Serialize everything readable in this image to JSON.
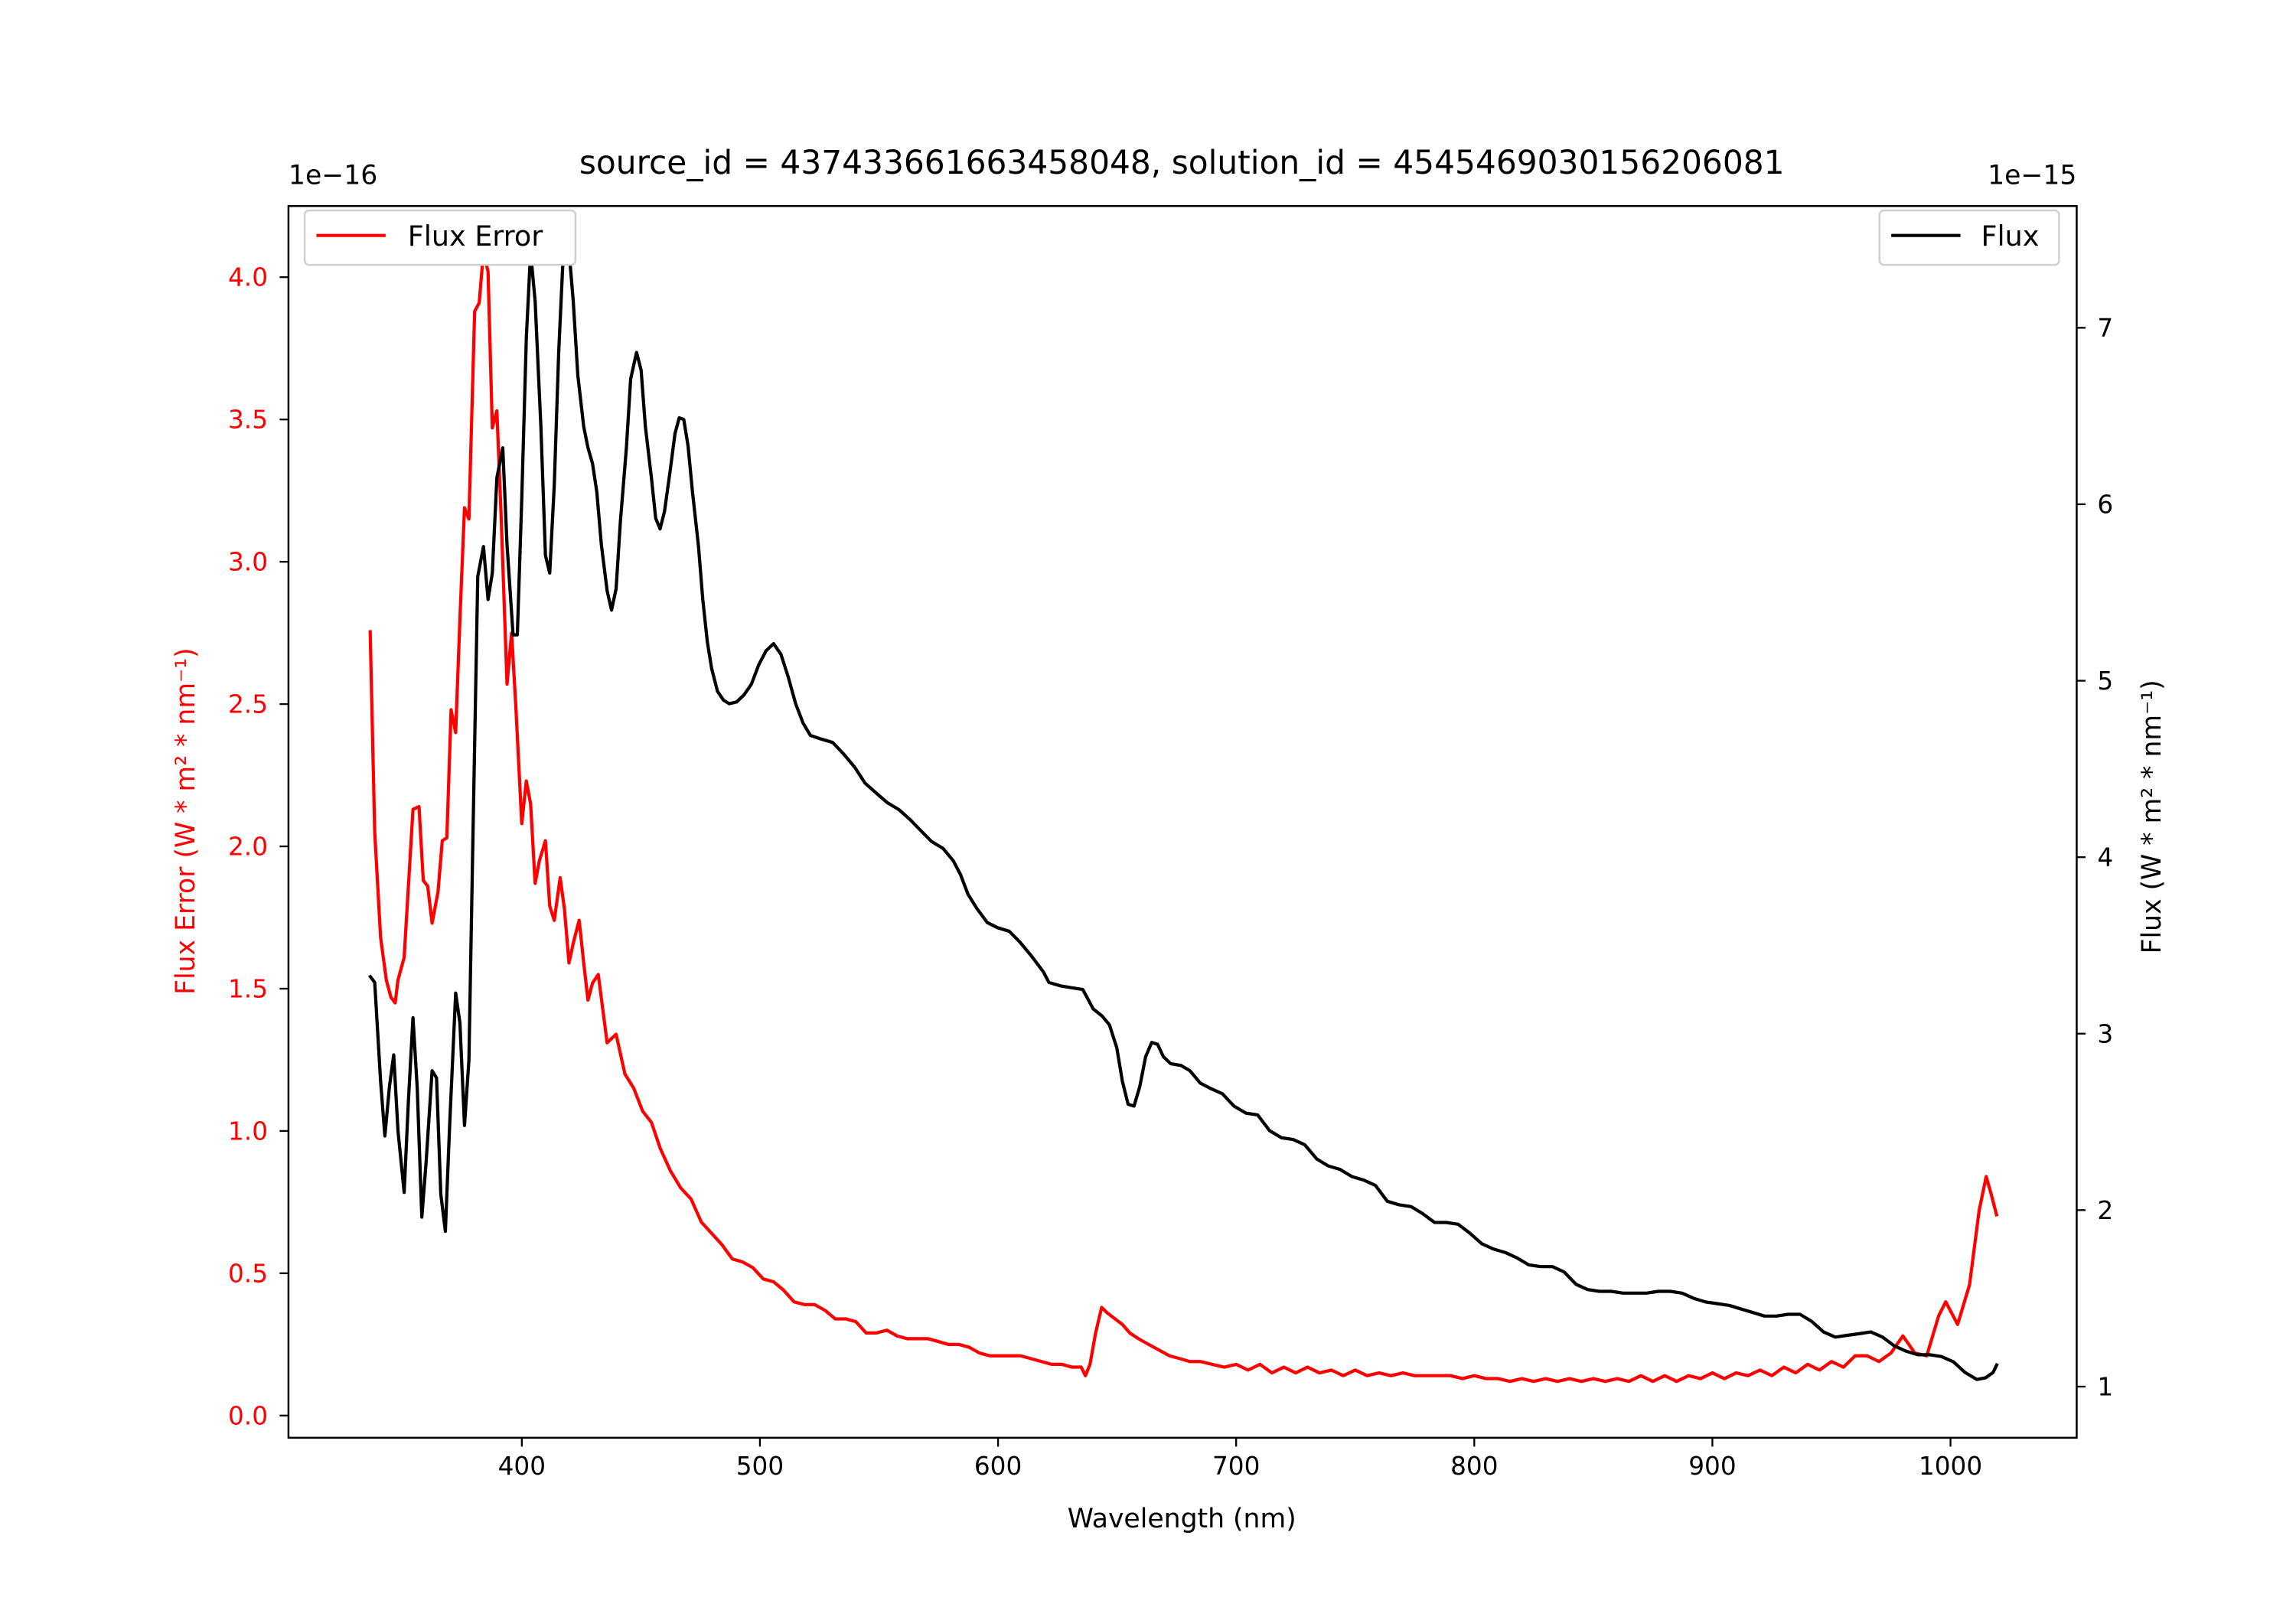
{
  "chart_data": {
    "type": "line",
    "title": "source_id = 437433661663458048, solution_id = 4545469030156206081",
    "xlabel": "Wavelength (nm)",
    "ylabel_left": "Flux Error (W * m² * nm⁻¹)",
    "ylabel_right": "Flux (W * m² * nm⁻¹)",
    "left_offset_text": "1e−16",
    "right_offset_text": "1e−15",
    "xlim": [
      302,
      1053
    ],
    "ylim_left": [
      -0.078,
      4.25
    ],
    "ylim_right": [
      0.71,
      7.69
    ],
    "x_ticks": [
      400,
      500,
      600,
      700,
      800,
      900,
      1000
    ],
    "x_tick_labels": [
      "400",
      "500",
      "600",
      "700",
      "800",
      "900",
      "1000"
    ],
    "left_ticks": [
      0,
      0.5,
      1,
      1.5,
      2,
      2.5,
      3,
      3.5,
      4
    ],
    "left_tick_labels": [
      "0.0",
      "0.5",
      "1.0",
      "1.5",
      "2.0",
      "2.5",
      "3.0",
      "3.5",
      "4.0"
    ],
    "right_ticks": [
      1,
      2,
      3,
      4,
      5,
      6,
      7
    ],
    "right_tick_labels": [
      "1",
      "2",
      "3",
      "4",
      "5",
      "6",
      "7"
    ],
    "grid": false,
    "series": [
      {
        "name": "Flux Error",
        "axis": "left",
        "color": "#ff0000",
        "legend": "top-left",
        "x": [
          336.3,
          338.2,
          340.7,
          343.1,
          345,
          346.8,
          348,
          350.6,
          354.3,
          356.8,
          358.6,
          360.5,
          362.3,
          364.8,
          366.6,
          368.5,
          370.3,
          372.2,
          374,
          375.9,
          377.8,
          380.2,
          382.1,
          383.9,
          385.8,
          387.6,
          389.5,
          391.3,
          393.8,
          395.7,
          397.5,
          400,
          401.9,
          403.7,
          405.6,
          407.4,
          409.9,
          411.7,
          413.6,
          416.1,
          417.9,
          419.8,
          421.6,
          424.1,
          426,
          427.8,
          429.7,
          432.1,
          435.8,
          439.6,
          443.3,
          447,
          450.7,
          454.4,
          458.1,
          462.4,
          466.7,
          471.1,
          475.4,
          479.7,
          484.1,
          488.4,
          492.7,
          497,
          501.4,
          505.7,
          510,
          514.3,
          518.7,
          523,
          527.3,
          531.6,
          536,
          540.3,
          544.6,
          548.9,
          553.3,
          557.6,
          561.9,
          566.2,
          570.6,
          574.9,
          579.2,
          583.6,
          587.9,
          592.2,
          596.5,
          600.9,
          605.2,
          609.5,
          613.8,
          618.2,
          622.5,
          626.8,
          631.1,
          634.9,
          636.7,
          638.6,
          641,
          643.5,
          646,
          649.1,
          652.2,
          655.3,
          659,
          663.3,
          667.6,
          672,
          676.3,
          680.6,
          685,
          690,
          695,
          700,
          705,
          710,
          715,
          720,
          725,
          730,
          735,
          740,
          745,
          750,
          755,
          760,
          765,
          770,
          775,
          780,
          785,
          790,
          795,
          800,
          805,
          810,
          815,
          820,
          825,
          830,
          835,
          840,
          845,
          850,
          855,
          860,
          865,
          870,
          875,
          880,
          885,
          890,
          895,
          900,
          905,
          910,
          915,
          920,
          925,
          930,
          935,
          940,
          945,
          950,
          955,
          960,
          965,
          970,
          975,
          980,
          985,
          990,
          995,
          998,
          1003,
          1008,
          1012,
          1015,
          1017,
          1019.5
        ],
        "y": [
          2.76,
          2.05,
          1.68,
          1.53,
          1.47,
          1.45,
          1.53,
          1.61,
          2.13,
          2.14,
          1.88,
          1.86,
          1.73,
          1.84,
          2.02,
          2.03,
          2.48,
          2.4,
          2.8,
          3.19,
          3.15,
          3.88,
          3.91,
          4.09,
          4.02,
          3.47,
          3.53,
          3.16,
          2.57,
          2.75,
          2.49,
          2.08,
          2.23,
          2.15,
          1.87,
          1.95,
          2.02,
          1.79,
          1.74,
          1.89,
          1.78,
          1.59,
          1.66,
          1.74,
          1.59,
          1.46,
          1.52,
          1.55,
          1.31,
          1.34,
          1.2,
          1.15,
          1.07,
          1.03,
          0.94,
          0.86,
          0.8,
          0.76,
          0.68,
          0.64,
          0.6,
          0.55,
          0.54,
          0.52,
          0.48,
          0.47,
          0.44,
          0.4,
          0.39,
          0.39,
          0.37,
          0.34,
          0.34,
          0.33,
          0.29,
          0.29,
          0.3,
          0.28,
          0.27,
          0.27,
          0.27,
          0.26,
          0.25,
          0.25,
          0.24,
          0.22,
          0.21,
          0.21,
          0.21,
          0.21,
          0.2,
          0.19,
          0.18,
          0.18,
          0.17,
          0.17,
          0.14,
          0.18,
          0.29,
          0.38,
          0.36,
          0.34,
          0.32,
          0.29,
          0.27,
          0.25,
          0.23,
          0.21,
          0.2,
          0.19,
          0.19,
          0.18,
          0.17,
          0.18,
          0.16,
          0.18,
          0.15,
          0.17,
          0.15,
          0.17,
          0.15,
          0.16,
          0.14,
          0.16,
          0.14,
          0.15,
          0.14,
          0.15,
          0.14,
          0.14,
          0.14,
          0.14,
          0.13,
          0.14,
          0.13,
          0.13,
          0.12,
          0.13,
          0.12,
          0.13,
          0.12,
          0.13,
          0.12,
          0.13,
          0.12,
          0.13,
          0.12,
          0.14,
          0.12,
          0.14,
          0.12,
          0.14,
          0.13,
          0.15,
          0.13,
          0.15,
          0.14,
          0.16,
          0.14,
          0.17,
          0.15,
          0.18,
          0.16,
          0.19,
          0.17,
          0.21,
          0.21,
          0.19,
          0.22,
          0.28,
          0.22,
          0.21,
          0.35,
          0.4,
          0.32,
          0.46,
          0.72,
          0.84,
          0.78,
          0.7
        ]
      },
      {
        "name": "Flux",
        "axis": "right",
        "color": "#000000",
        "legend": "top-right",
        "x": [
          336,
          338.2,
          340.7,
          342.5,
          344.4,
          346.2,
          348,
          350.6,
          352.4,
          354.3,
          356.1,
          358,
          359.8,
          362.3,
          364.2,
          366,
          367.9,
          369.7,
          372.2,
          374,
          375.9,
          377.8,
          379.6,
          381.5,
          383.9,
          385.8,
          387.6,
          389.5,
          392,
          393.8,
          396.3,
          398.1,
          400,
          401.9,
          403.7,
          405.6,
          408,
          409.9,
          411.7,
          413.6,
          415.5,
          417.3,
          419.8,
          421.6,
          423.5,
          426,
          427.8,
          429.7,
          431.5,
          433.4,
          435.8,
          437.7,
          439.6,
          441.4,
          443.9,
          445.7,
          448.2,
          450.1,
          451.9,
          454.4,
          456.2,
          458.1,
          459.9,
          462.4,
          464.3,
          466.1,
          468,
          469.8,
          471.7,
          474.2,
          476,
          477.9,
          479.7,
          482.2,
          484.7,
          487.1,
          490.2,
          493.3,
          496.4,
          499.5,
          502.6,
          505.7,
          508.8,
          511.9,
          515,
          518.1,
          521.2,
          525.5,
          530.5,
          534.8,
          539.8,
          544.1,
          549.1,
          553.4,
          558.3,
          563.3,
          567.6,
          572,
          576.9,
          581.2,
          584.3,
          587.4,
          591.1,
          595.5,
          599.8,
          604.7,
          609.1,
          614,
          619,
          621.4,
          626.4,
          635.6,
          640,
          643.7,
          646.8,
          649.9,
          652.2,
          654.6,
          657.1,
          659.5,
          662,
          664.5,
          667,
          669.4,
          672.5,
          676.8,
          680.6,
          684.9,
          689.2,
          694.2,
          699.1,
          704.1,
          709,
          714,
          719,
          723.9,
          728.8,
          733.8,
          738.7,
          743.7,
          748.6,
          753.6,
          758.5,
          763.5,
          768.4,
          773.4,
          778.3,
          783.3,
          788.2,
          793.2,
          798.1,
          803.1,
          808,
          813,
          817.9,
          822.9,
          827.8,
          832.8,
          837.7,
          842.7,
          847.6,
          852.6,
          857.5,
          862.5,
          867.4,
          872.4,
          877.3,
          882.3,
          887.2,
          892.2,
          897.2,
          902.1,
          907.1,
          912,
          917,
          921.9,
          926.9,
          931.8,
          936.8,
          941.7,
          946.7,
          951.6,
          956.6,
          961.6,
          966.5,
          971.5,
          976.4,
          981.4,
          986.3,
          991.3,
          996.2,
          1001.2,
          1006.1,
          1011.1,
          1014.8,
          1017.9,
          1019.7
        ],
        "y": [
          3.33,
          3.29,
          2.73,
          2.42,
          2.7,
          2.88,
          2.45,
          2.1,
          2.62,
          3.09,
          2.69,
          1.96,
          2.27,
          2.79,
          2.75,
          2.09,
          1.88,
          2.48,
          3.23,
          3.06,
          2.48,
          2.85,
          4.19,
          5.59,
          5.76,
          5.46,
          5.61,
          6.15,
          6.32,
          5.77,
          5.26,
          5.26,
          6.03,
          6.94,
          7.43,
          7.15,
          6.44,
          5.71,
          5.61,
          6.11,
          6.86,
          7.38,
          7.44,
          7.15,
          6.73,
          6.44,
          6.32,
          6.23,
          6.07,
          5.77,
          5.51,
          5.4,
          5.52,
          5.9,
          6.32,
          6.71,
          6.86,
          6.76,
          6.44,
          6.15,
          5.92,
          5.86,
          5.96,
          6.2,
          6.4,
          6.49,
          6.48,
          6.33,
          6.07,
          5.76,
          5.46,
          5.22,
          5.07,
          4.94,
          4.89,
          4.87,
          4.88,
          4.92,
          4.98,
          5.09,
          5.17,
          5.21,
          5.15,
          5.02,
          4.87,
          4.76,
          4.69,
          4.67,
          4.65,
          4.59,
          4.51,
          4.42,
          4.36,
          4.31,
          4.27,
          4.21,
          4.15,
          4.09,
          4.05,
          3.98,
          3.9,
          3.79,
          3.71,
          3.63,
          3.6,
          3.58,
          3.52,
          3.44,
          3.35,
          3.29,
          3.27,
          3.25,
          3.14,
          3.1,
          3.05,
          2.92,
          2.73,
          2.6,
          2.59,
          2.7,
          2.87,
          2.95,
          2.94,
          2.87,
          2.83,
          2.82,
          2.79,
          2.72,
          2.69,
          2.66,
          2.59,
          2.55,
          2.54,
          2.45,
          2.41,
          2.4,
          2.37,
          2.29,
          2.25,
          2.23,
          2.19,
          2.17,
          2.14,
          2.05,
          2.03,
          2.02,
          1.98,
          1.93,
          1.93,
          1.92,
          1.87,
          1.81,
          1.78,
          1.76,
          1.73,
          1.69,
          1.68,
          1.68,
          1.65,
          1.58,
          1.55,
          1.54,
          1.54,
          1.53,
          1.53,
          1.53,
          1.54,
          1.54,
          1.53,
          1.5,
          1.48,
          1.47,
          1.46,
          1.44,
          1.42,
          1.4,
          1.4,
          1.41,
          1.41,
          1.37,
          1.31,
          1.28,
          1.29,
          1.3,
          1.31,
          1.28,
          1.23,
          1.2,
          1.18,
          1.18,
          1.17,
          1.14,
          1.08,
          1.04,
          1.05,
          1.08,
          1.13
        ]
      }
    ]
  }
}
